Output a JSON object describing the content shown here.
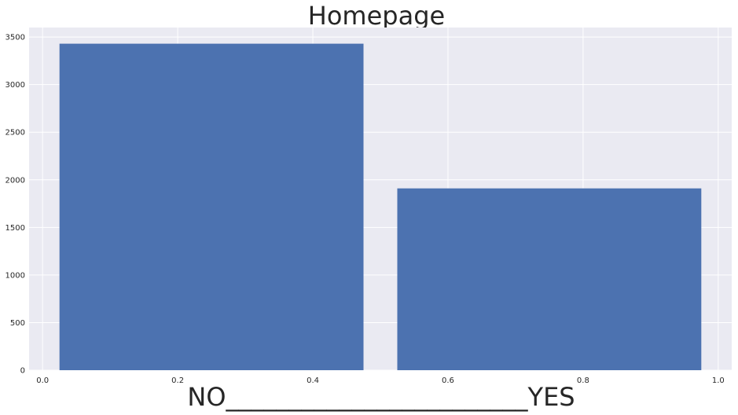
{
  "chart_data": {
    "type": "bar",
    "title": "Homepage",
    "xlabel": "NO________________________YES",
    "ylabel": "",
    "bars": [
      {
        "label": "NO",
        "x_start": 0.025,
        "x_end": 0.475,
        "value": 3430
      },
      {
        "label": "YES",
        "x_start": 0.525,
        "x_end": 0.975,
        "value": 1910
      }
    ],
    "xlim": [
      -0.02,
      1.02
    ],
    "ylim": [
      0,
      3600
    ],
    "xticks": [
      0.0,
      0.2,
      0.4,
      0.6,
      0.8,
      1.0
    ],
    "xtick_labels": [
      "0.0",
      "0.2",
      "0.4",
      "0.6",
      "0.8",
      "1.0"
    ],
    "yticks": [
      0,
      500,
      1000,
      1500,
      2000,
      2500,
      3000,
      3500
    ],
    "ytick_labels": [
      "0",
      "500",
      "1000",
      "1500",
      "2000",
      "2500",
      "3000",
      "3500"
    ],
    "grid": true,
    "colors": {
      "bar": "#4c72b0",
      "background": "#eaeaf2",
      "grid": "#ffffff",
      "text": "#262626"
    }
  }
}
